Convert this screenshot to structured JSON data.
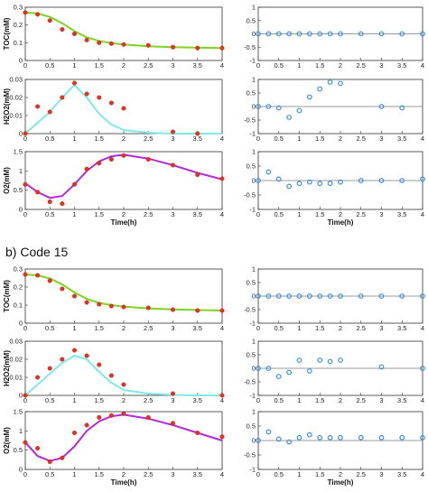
{
  "figure": {
    "panel_b_title": "b)  Code 15"
  },
  "colors": {
    "toc_fit": "#7ed321",
    "h2o2_fit": "#7fe8e8",
    "o2_fit": "#b02ad8",
    "exp_marker": "#e8321e",
    "resid_marker": "#3a8fd9",
    "resid_line": "#999999"
  },
  "chart_data": [
    {
      "type": "scatter",
      "group": "a",
      "kind": "data",
      "ylabel": "TOC(mM)",
      "xlabel": "",
      "xlim": [
        0,
        4
      ],
      "ylim": [
        0,
        0.3
      ],
      "xticks": [
        "0",
        "0.5",
        "1",
        "1.5",
        "2",
        "2.5",
        "3",
        "3.5",
        "4"
      ],
      "yticks": [
        "0",
        "0.1",
        "0.2",
        "0.3"
      ],
      "points": {
        "x": [
          0,
          0.25,
          0.5,
          0.75,
          1,
          1.25,
          1.5,
          1.75,
          2,
          2.5,
          3,
          3.5,
          4
        ],
        "y": [
          0.27,
          0.26,
          0.225,
          0.175,
          0.15,
          0.115,
          0.1,
          0.095,
          0.09,
          0.085,
          0.075,
          0.07,
          0.07
        ]
      },
      "fit": {
        "x": [
          0,
          0.25,
          0.5,
          0.75,
          1,
          1.25,
          1.5,
          1.75,
          2,
          2.5,
          3,
          3.5,
          4
        ],
        "y": [
          0.27,
          0.265,
          0.245,
          0.21,
          0.165,
          0.13,
          0.11,
          0.098,
          0.09,
          0.08,
          0.075,
          0.072,
          0.07
        ]
      }
    },
    {
      "type": "scatter",
      "group": "a",
      "kind": "residual",
      "xlim": [
        0,
        4
      ],
      "ylim": [
        -1,
        1
      ],
      "xticks": [
        "0",
        "0.5",
        "1",
        "1.5",
        "2",
        "2.5",
        "3",
        "3.5",
        "4"
      ],
      "yticks": [
        "-1",
        "-0.5",
        "0",
        "0.5",
        "1"
      ],
      "points": {
        "x": [
          0,
          0.25,
          0.5,
          0.75,
          1,
          1.25,
          1.5,
          1.75,
          2,
          2.5,
          3,
          3.5,
          4
        ],
        "y": [
          0,
          0,
          0,
          0,
          0,
          0,
          0,
          0,
          0,
          0,
          0,
          0,
          0
        ]
      }
    },
    {
      "type": "scatter",
      "group": "a",
      "kind": "data",
      "ylabel": "H2O2(mM)",
      "xlabel": "",
      "xlim": [
        0,
        4
      ],
      "ylim": [
        0,
        0.03
      ],
      "xticks": [
        "0",
        "0.5",
        "1",
        "1.5",
        "2",
        "2.5",
        "3",
        "3.5",
        "4"
      ],
      "yticks": [
        "0",
        "0.01",
        "0.02",
        "0.03"
      ],
      "points": {
        "x": [
          0,
          0.25,
          0.5,
          0.75,
          1,
          1.25,
          1.5,
          1.75,
          2,
          3,
          3.5
        ],
        "y": [
          0,
          0.015,
          0.012,
          0.02,
          0.028,
          0.022,
          0.02,
          0.017,
          0.014,
          0.001,
          0
        ]
      },
      "fit": {
        "x": [
          0,
          0.25,
          0.5,
          0.75,
          1,
          1.25,
          1.5,
          1.75,
          2,
          2.5,
          3,
          3.5,
          4
        ],
        "y": [
          0,
          0.006,
          0.012,
          0.02,
          0.027,
          0.02,
          0.011,
          0.005,
          0.002,
          0.0005,
          0,
          0,
          0
        ]
      }
    },
    {
      "type": "scatter",
      "group": "a",
      "kind": "residual",
      "xlim": [
        0,
        4
      ],
      "ylim": [
        -1,
        1
      ],
      "xticks": [
        "0",
        "0.5",
        "1",
        "1.5",
        "2",
        "2.5",
        "3",
        "3.5",
        "4"
      ],
      "yticks": [
        "-1",
        "-0.5",
        "0",
        "0.5",
        "1"
      ],
      "points": {
        "x": [
          0,
          0.25,
          0.5,
          0.75,
          1,
          1.25,
          1.5,
          1.75,
          2,
          3,
          3.5
        ],
        "y": [
          0,
          0,
          -0.05,
          -0.4,
          -0.15,
          0.35,
          0.65,
          0.9,
          0.85,
          0,
          -0.05
        ]
      }
    },
    {
      "type": "scatter",
      "group": "a",
      "kind": "data",
      "ylabel": "O2(mM)",
      "xlabel": "Time(h)",
      "xlim": [
        0,
        4
      ],
      "ylim": [
        0,
        1.5
      ],
      "xticks": [
        "0",
        "0.5",
        "1",
        "1.5",
        "2",
        "2.5",
        "3",
        "3.5",
        "4"
      ],
      "yticks": [
        "0",
        "0.5",
        "1",
        "1.5"
      ],
      "points": {
        "x": [
          0,
          0.25,
          0.5,
          0.75,
          1,
          1.25,
          1.5,
          1.75,
          2,
          2.5,
          3,
          3.5,
          4
        ],
        "y": [
          0.65,
          0.45,
          0.2,
          0.15,
          0.65,
          1.05,
          1.2,
          1.3,
          1.4,
          1.3,
          1.15,
          0.9,
          0.8
        ]
      },
      "fit": {
        "x": [
          0,
          0.25,
          0.5,
          0.75,
          1,
          1.25,
          1.5,
          1.75,
          2,
          2.5,
          3,
          3.5,
          4
        ],
        "y": [
          0.68,
          0.45,
          0.3,
          0.35,
          0.65,
          1.0,
          1.25,
          1.38,
          1.42,
          1.32,
          1.15,
          0.95,
          0.78
        ]
      }
    },
    {
      "type": "scatter",
      "group": "a",
      "kind": "residual",
      "xlabel": "Time(h)",
      "xlim": [
        0,
        4
      ],
      "ylim": [
        -1,
        1
      ],
      "xticks": [
        "0",
        "0.5",
        "1",
        "1.5",
        "2",
        "2.5",
        "3",
        "3.5",
        "4"
      ],
      "yticks": [
        "-1",
        "-0.5",
        "0",
        "0.5",
        "1"
      ],
      "points": {
        "x": [
          0,
          0.25,
          0.5,
          0.75,
          1,
          1.25,
          1.5,
          1.75,
          2,
          2.5,
          3,
          3.5,
          4
        ],
        "y": [
          0,
          0.3,
          0.05,
          -0.2,
          -0.1,
          -0.05,
          -0.1,
          -0.1,
          -0.05,
          0,
          0,
          0,
          0.05
        ]
      }
    },
    {
      "type": "scatter",
      "group": "b",
      "kind": "data",
      "ylabel": "TOC(mM)",
      "xlabel": "",
      "xlim": [
        0,
        4
      ],
      "ylim": [
        0,
        0.3
      ],
      "xticks": [
        "0",
        "0.5",
        "1",
        "1.5",
        "2",
        "2.5",
        "3",
        "3.5",
        "4"
      ],
      "yticks": [
        "0",
        "0.1",
        "0.2",
        "0.3"
      ],
      "points": {
        "x": [
          0,
          0.25,
          0.5,
          0.75,
          1,
          1.25,
          1.5,
          1.75,
          2,
          2.5,
          3,
          3.5,
          4
        ],
        "y": [
          0.27,
          0.265,
          0.235,
          0.19,
          0.15,
          0.115,
          0.105,
          0.095,
          0.09,
          0.085,
          0.075,
          0.07,
          0.07
        ]
      },
      "fit": {
        "x": [
          0,
          0.25,
          0.5,
          0.75,
          1,
          1.25,
          1.5,
          1.75,
          2,
          2.5,
          3,
          3.5,
          4
        ],
        "y": [
          0.27,
          0.265,
          0.248,
          0.215,
          0.17,
          0.135,
          0.112,
          0.1,
          0.092,
          0.082,
          0.076,
          0.073,
          0.07
        ]
      }
    },
    {
      "type": "scatter",
      "group": "b",
      "kind": "residual",
      "xlim": [
        0,
        4
      ],
      "ylim": [
        -1,
        1
      ],
      "xticks": [
        "0",
        "0.5",
        "1",
        "1.5",
        "2",
        "2.5",
        "3",
        "3.5",
        "4"
      ],
      "yticks": [
        "-1",
        "-0.5",
        "0",
        "0.5",
        "1"
      ],
      "points": {
        "x": [
          0,
          0.25,
          0.5,
          0.75,
          1,
          1.25,
          1.5,
          1.75,
          2,
          2.5,
          3,
          3.5,
          4
        ],
        "y": [
          0,
          0,
          0,
          0,
          0,
          0,
          0,
          0,
          0,
          0,
          0,
          0,
          0
        ]
      }
    },
    {
      "type": "scatter",
      "group": "b",
      "kind": "data",
      "ylabel": "H2O2(mM)",
      "xlabel": "",
      "xlim": [
        0,
        4
      ],
      "ylim": [
        0,
        0.03
      ],
      "xticks": [
        "0",
        "0.5",
        "1",
        "1.5",
        "2",
        "2.5",
        "3",
        "3.5",
        "4"
      ],
      "yticks": [
        "0",
        "0.01",
        "0.02",
        "0.03"
      ],
      "points": {
        "x": [
          0,
          0.25,
          0.5,
          0.75,
          1,
          1.25,
          1.5,
          1.75,
          2,
          3,
          4
        ],
        "y": [
          0,
          0.01,
          0.015,
          0.02,
          0.025,
          0.022,
          0.017,
          0.011,
          0.006,
          0.001,
          0
        ]
      },
      "fit": {
        "x": [
          0,
          0.25,
          0.5,
          0.75,
          1,
          1.25,
          1.5,
          1.75,
          2,
          2.5,
          3,
          3.5,
          4
        ],
        "y": [
          0,
          0.006,
          0.012,
          0.018,
          0.022,
          0.02,
          0.013,
          0.007,
          0.003,
          0.001,
          0.0003,
          0,
          0
        ]
      }
    },
    {
      "type": "scatter",
      "group": "b",
      "kind": "residual",
      "xlim": [
        0,
        4
      ],
      "ylim": [
        -1,
        1
      ],
      "xticks": [
        "0",
        "0.5",
        "1",
        "1.5",
        "2",
        "2.5",
        "3",
        "3.5",
        "4"
      ],
      "yticks": [
        "-1",
        "-0.5",
        "0",
        "0.5",
        "1"
      ],
      "points": {
        "x": [
          0,
          0.25,
          0.5,
          0.75,
          1,
          1.25,
          1.5,
          1.75,
          2,
          3,
          4
        ],
        "y": [
          0,
          0,
          -0.3,
          -0.15,
          0.3,
          -0.1,
          0.3,
          0.25,
          0.3,
          0.05,
          0
        ]
      }
    },
    {
      "type": "scatter",
      "group": "b",
      "kind": "data",
      "ylabel": "O2(mM)",
      "xlabel": "Time(h)",
      "xlim": [
        0,
        4
      ],
      "ylim": [
        0,
        1.5
      ],
      "xticks": [
        "0",
        "0.5",
        "1",
        "1.5",
        "2",
        "2.5",
        "3",
        "3.5",
        "4"
      ],
      "yticks": [
        "0",
        "0.5",
        "1",
        "1.5"
      ],
      "points": {
        "x": [
          0,
          0.25,
          0.5,
          0.75,
          1,
          1.25,
          1.5,
          1.75,
          2,
          2.5,
          3,
          3.5,
          4
        ],
        "y": [
          0.7,
          0.55,
          0.2,
          0.3,
          0.95,
          1.15,
          1.35,
          1.4,
          1.45,
          1.35,
          1.2,
          0.95,
          0.85
        ]
      },
      "fit": {
        "x": [
          0,
          0.25,
          0.5,
          0.75,
          1,
          1.25,
          1.5,
          1.75,
          2,
          2.5,
          3,
          3.5,
          4
        ],
        "y": [
          0.7,
          0.35,
          0.22,
          0.3,
          0.6,
          1.0,
          1.25,
          1.38,
          1.42,
          1.32,
          1.15,
          0.95,
          0.75
        ]
      }
    },
    {
      "type": "scatter",
      "group": "b",
      "kind": "residual",
      "xlabel": "Time(h)",
      "xlim": [
        0,
        4
      ],
      "ylim": [
        -1,
        1
      ],
      "xticks": [
        "0",
        "0.5",
        "1",
        "1.5",
        "2",
        "2.5",
        "3",
        "3.5",
        "4"
      ],
      "yticks": [
        "-1",
        "-0.5",
        "0",
        "0.5",
        "1"
      ],
      "points": {
        "x": [
          0,
          0.25,
          0.5,
          0.75,
          1,
          1.25,
          1.5,
          1.75,
          2,
          2.5,
          3,
          3.5,
          4
        ],
        "y": [
          0,
          0.3,
          0.05,
          -0.05,
          0.1,
          0.2,
          0.1,
          0.1,
          0.1,
          0.1,
          0.1,
          0.1,
          0.1
        ]
      }
    }
  ]
}
